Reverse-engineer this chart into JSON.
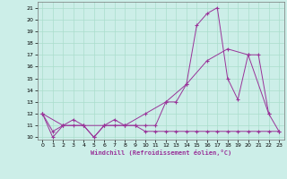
{
  "xlabel": "Windchill (Refroidissement éolien,°C)",
  "bg_color": "#cceee8",
  "grid_color": "#aaddcc",
  "line_color": "#993399",
  "xlim": [
    -0.5,
    23.5
  ],
  "ylim": [
    9.8,
    21.5
  ],
  "yticks": [
    10,
    11,
    12,
    13,
    14,
    15,
    16,
    17,
    18,
    19,
    20,
    21
  ],
  "xticks": [
    0,
    1,
    2,
    3,
    4,
    5,
    6,
    7,
    8,
    9,
    10,
    11,
    12,
    13,
    14,
    15,
    16,
    17,
    18,
    19,
    20,
    21,
    22,
    23
  ],
  "series1_x": [
    0,
    1,
    2,
    3,
    4,
    5,
    6,
    7,
    8,
    9,
    10,
    11,
    12,
    13,
    14,
    15,
    16,
    17,
    18,
    19,
    20,
    21,
    22,
    23
  ],
  "series1_y": [
    12,
    10,
    11,
    11,
    11,
    10,
    11,
    11,
    11,
    11,
    11,
    11,
    13,
    13,
    14.5,
    19.5,
    20.5,
    21,
    15,
    13.2,
    17,
    17,
    12,
    10.5
  ],
  "series2_x": [
    0,
    1,
    2,
    3,
    4,
    5,
    6,
    7,
    8,
    9,
    10,
    11,
    12,
    13,
    14,
    15,
    16,
    17,
    18,
    19,
    20,
    21,
    22,
    23
  ],
  "series2_y": [
    12,
    10.5,
    11,
    11.5,
    11,
    10,
    11,
    11.5,
    11,
    11,
    10.5,
    10.5,
    10.5,
    10.5,
    10.5,
    10.5,
    10.5,
    10.5,
    10.5,
    10.5,
    10.5,
    10.5,
    10.5,
    10.5
  ],
  "series3_x": [
    0,
    2,
    4,
    6,
    8,
    10,
    12,
    14,
    16,
    18,
    20,
    22
  ],
  "series3_y": [
    12,
    11,
    11,
    11,
    11,
    12,
    13,
    14.5,
    16.5,
    17.5,
    17,
    12
  ]
}
